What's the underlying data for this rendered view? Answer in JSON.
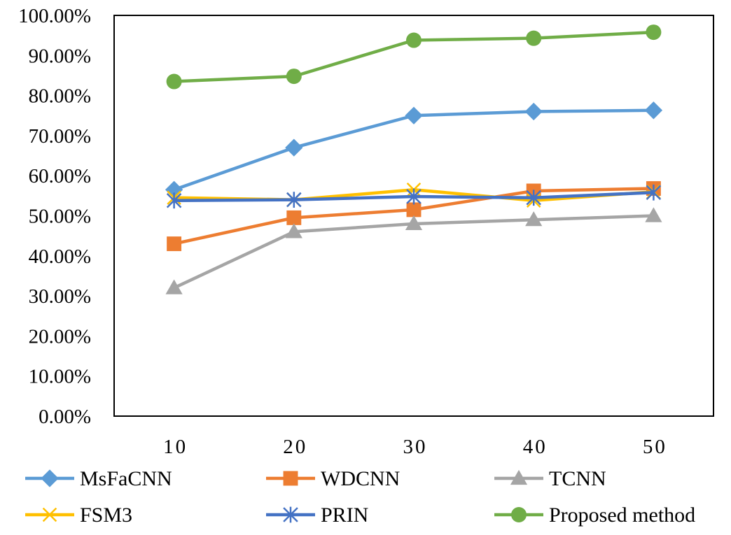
{
  "chart_data": {
    "type": "line",
    "title": "",
    "xlabel": "",
    "ylabel": "",
    "categories": [
      "10",
      "20",
      "30",
      "40",
      "50"
    ],
    "ylim": [
      0,
      100
    ],
    "y_ticks": [
      "0.00%",
      "10.00%",
      "20.00%",
      "30.00%",
      "40.00%",
      "50.00%",
      "60.00%",
      "70.00%",
      "80.00%",
      "90.00%",
      "100.00%"
    ],
    "grid": false,
    "legend_position": "bottom",
    "series": [
      {
        "name": "MsFaCNN",
        "color": "#5B9BD5",
        "marker": "diamond",
        "values": [
          56.5,
          67.0,
          75.0,
          76.0,
          76.3
        ]
      },
      {
        "name": "WDCNN",
        "color": "#ED7D31",
        "marker": "square",
        "values": [
          43.0,
          49.5,
          51.5,
          56.2,
          56.8
        ]
      },
      {
        "name": "TCNN",
        "color": "#A5A5A5",
        "marker": "triangle",
        "values": [
          32.0,
          46.0,
          48.0,
          49.0,
          50.0
        ]
      },
      {
        "name": "FSM3",
        "color": "#FFC000",
        "marker": "x",
        "values": [
          54.5,
          54.0,
          56.5,
          53.8,
          56.0
        ]
      },
      {
        "name": "PRIN",
        "color": "#4472C4",
        "marker": "star",
        "values": [
          53.8,
          54.0,
          54.8,
          54.5,
          55.8
        ]
      },
      {
        "name": "Proposed method",
        "color": "#70AD47",
        "marker": "circle",
        "values": [
          83.5,
          84.8,
          93.8,
          94.3,
          95.8
        ]
      }
    ]
  }
}
